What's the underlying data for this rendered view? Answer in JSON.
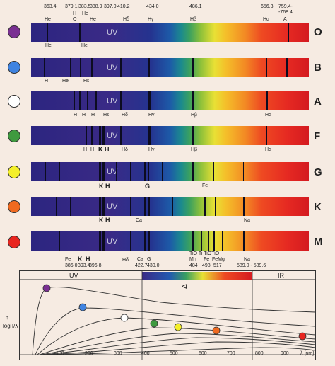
{
  "wavelength_labels_top": [
    "363.4",
    "379.1",
    "383.5",
    "388.9",
    "397.0",
    "410.2",
    "434.0",
    "486.1",
    "656.3",
    "759.4-",
    "-768.4"
  ],
  "element_labels_top": [
    "He",
    "H",
    "O",
    "He",
    "He",
    "Hδ",
    "Hγ",
    "Hβ",
    "Hα",
    "A"
  ],
  "uv_label": "UV",
  "spectral_classes": [
    {
      "letter": "O",
      "color": "#7a2f92",
      "labels": [
        "He",
        "He"
      ]
    },
    {
      "letter": "B",
      "color": "#3f83e0",
      "labels": [
        "H",
        "He",
        "Hε"
      ]
    },
    {
      "letter": "A",
      "color": "#ffffff",
      "labels": [
        "H",
        "H",
        "H",
        "Hε",
        "Hδ",
        "Hγ",
        "Hβ",
        "Hα"
      ]
    },
    {
      "letter": "F",
      "color": "#3f9a3f",
      "labels": [
        "H",
        "H",
        "K",
        "H",
        "Hδ",
        "Hγ",
        "Hβ",
        "Hα"
      ]
    },
    {
      "letter": "G",
      "color": "#f4ef2a",
      "labels": [
        "K",
        "H",
        "G",
        "Fe"
      ]
    },
    {
      "letter": "K",
      "color": "#ef6a20",
      "labels": [
        "K",
        "H",
        "Ca",
        "Na"
      ]
    },
    {
      "letter": "M",
      "color": "#e8251f",
      "labels": []
    }
  ],
  "m_class_labels": {
    "tio": "TiO Ti TiOTiO",
    "elements": [
      "Fe",
      "K",
      "H",
      "Hδ",
      "Ca",
      "G",
      "Mn",
      "Fe",
      "FeMg",
      "Na"
    ],
    "wavelengths": [
      "386.0",
      "393.4",
      "396.8",
      "422.7",
      "430.0",
      "484",
      "498",
      "517",
      "589.0 - 589.6"
    ]
  },
  "plot": {
    "uv_label": "UV",
    "ir_label": "IR",
    "y_label": "log I/λ",
    "x_unit": "λ [nm]",
    "x_ticks": [
      "100",
      "200",
      "300",
      "400",
      "500",
      "600",
      "700",
      "800",
      "900"
    ],
    "visible_symbol": "⊲"
  }
}
